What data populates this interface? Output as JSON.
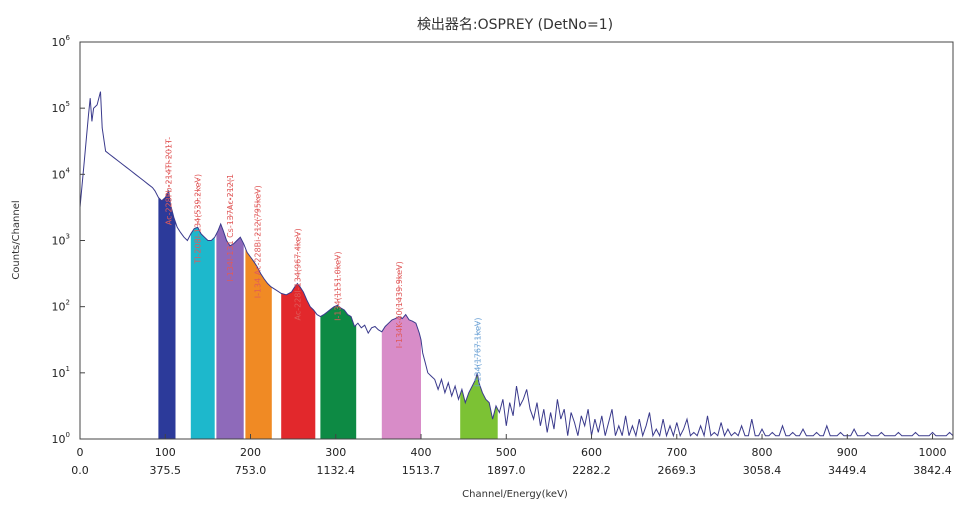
{
  "chart_data": {
    "type": "line",
    "title": "検出器名:OSPREY (DetNo=1)",
    "xlabel": "Channel/Energy(keV)",
    "ylabel": "Counts/Channel",
    "xlim": [
      0,
      1024
    ],
    "ylim_log10": [
      0,
      6
    ],
    "y_scale": "log",
    "grid": false,
    "x_channel_ticks": [
      "0",
      "100",
      "200",
      "300",
      "400",
      "500",
      "600",
      "700",
      "800",
      "900",
      "1000"
    ],
    "x_energy_ticks": [
      "0.0",
      "375.5",
      "753.0",
      "1132.4",
      "1513.7",
      "1897.0",
      "2282.2",
      "2669.3",
      "3058.4",
      "3449.4",
      "3842.4"
    ],
    "y_tick_labels": [
      {
        "base": "10",
        "exp": "0"
      },
      {
        "base": "10",
        "exp": "1"
      },
      {
        "base": "10",
        "exp": "2"
      },
      {
        "base": "10",
        "exp": "3"
      },
      {
        "base": "10",
        "exp": "4"
      },
      {
        "base": "10",
        "exp": "5"
      },
      {
        "base": "10",
        "exp": "6"
      }
    ],
    "spectrum": {
      "color": "#3a3a8c",
      "points": [
        [
          0,
          3.5
        ],
        [
          5,
          4.2
        ],
        [
          10,
          4.9
        ],
        [
          12,
          5.15
        ],
        [
          14,
          4.8
        ],
        [
          16,
          5.0
        ],
        [
          20,
          5.05
        ],
        [
          24,
          5.25
        ],
        [
          26,
          4.7
        ],
        [
          30,
          4.35
        ],
        [
          35,
          4.3
        ],
        [
          40,
          4.25
        ],
        [
          45,
          4.2
        ],
        [
          50,
          4.15
        ],
        [
          55,
          4.1
        ],
        [
          60,
          4.05
        ],
        [
          65,
          4.0
        ],
        [
          70,
          3.95
        ],
        [
          75,
          3.9
        ],
        [
          80,
          3.85
        ],
        [
          85,
          3.8
        ],
        [
          88,
          3.75
        ],
        [
          92,
          3.65
        ],
        [
          96,
          3.6
        ],
        [
          100,
          3.65
        ],
        [
          104,
          3.75
        ],
        [
          106,
          3.55
        ],
        [
          110,
          3.35
        ],
        [
          114,
          3.2
        ],
        [
          118,
          3.12
        ],
        [
          122,
          3.05
        ],
        [
          126,
          3.0
        ],
        [
          130,
          3.1
        ],
        [
          134,
          3.18
        ],
        [
          138,
          3.2
        ],
        [
          142,
          3.1
        ],
        [
          146,
          3.05
        ],
        [
          150,
          3.0
        ],
        [
          154,
          3.0
        ],
        [
          158,
          3.05
        ],
        [
          162,
          3.15
        ],
        [
          165,
          3.25
        ],
        [
          168,
          3.15
        ],
        [
          172,
          3.0
        ],
        [
          176,
          2.92
        ],
        [
          180,
          2.95
        ],
        [
          184,
          3.0
        ],
        [
          188,
          3.05
        ],
        [
          192,
          2.95
        ],
        [
          196,
          2.82
        ],
        [
          200,
          2.75
        ],
        [
          204,
          2.68
        ],
        [
          208,
          2.6
        ],
        [
          212,
          2.5
        ],
        [
          216,
          2.42
        ],
        [
          220,
          2.35
        ],
        [
          224,
          2.3
        ],
        [
          230,
          2.25
        ],
        [
          236,
          2.2
        ],
        [
          242,
          2.18
        ],
        [
          248,
          2.22
        ],
        [
          252,
          2.3
        ],
        [
          255,
          2.35
        ],
        [
          258,
          2.3
        ],
        [
          262,
          2.22
        ],
        [
          266,
          2.1
        ],
        [
          270,
          2.0
        ],
        [
          274,
          1.95
        ],
        [
          278,
          1.88
        ],
        [
          282,
          1.85
        ],
        [
          286,
          1.88
        ],
        [
          290,
          1.92
        ],
        [
          294,
          1.96
        ],
        [
          298,
          2.0
        ],
        [
          302,
          2.02
        ],
        [
          306,
          1.98
        ],
        [
          310,
          1.95
        ],
        [
          314,
          1.88
        ],
        [
          318,
          1.85
        ],
        [
          322,
          1.7
        ],
        [
          326,
          1.75
        ],
        [
          330,
          1.68
        ],
        [
          334,
          1.72
        ],
        [
          338,
          1.6
        ],
        [
          342,
          1.68
        ],
        [
          346,
          1.7
        ],
        [
          350,
          1.65
        ],
        [
          354,
          1.62
        ],
        [
          358,
          1.7
        ],
        [
          362,
          1.75
        ],
        [
          366,
          1.8
        ],
        [
          370,
          1.82
        ],
        [
          374,
          1.85
        ],
        [
          378,
          1.82
        ],
        [
          382,
          1.88
        ],
        [
          386,
          1.8
        ],
        [
          390,
          1.78
        ],
        [
          394,
          1.75
        ],
        [
          398,
          1.6
        ],
        [
          400,
          1.5
        ],
        [
          402,
          1.3
        ],
        [
          405,
          1.15
        ],
        [
          408,
          1.0
        ],
        [
          412,
          0.95
        ],
        [
          416,
          0.9
        ],
        [
          420,
          0.75
        ],
        [
          424,
          0.9
        ],
        [
          428,
          0.7
        ],
        [
          432,
          0.85
        ],
        [
          436,
          0.65
        ],
        [
          440,
          0.8
        ],
        [
          444,
          0.6
        ],
        [
          448,
          0.75
        ],
        [
          452,
          0.55
        ],
        [
          456,
          0.7
        ],
        [
          460,
          0.8
        ],
        [
          464,
          0.9
        ],
        [
          466,
          1.0
        ],
        [
          468,
          0.85
        ],
        [
          472,
          0.7
        ],
        [
          476,
          0.6
        ],
        [
          480,
          0.55
        ],
        [
          484,
          0.3
        ],
        [
          488,
          0.5
        ],
        [
          492,
          0.4
        ],
        [
          496,
          0.6
        ],
        [
          500,
          0.2
        ],
        [
          504,
          0.55
        ],
        [
          508,
          0.35
        ],
        [
          512,
          0.8
        ],
        [
          516,
          0.5
        ],
        [
          520,
          0.6
        ],
        [
          524,
          0.75
        ],
        [
          528,
          0.45
        ],
        [
          532,
          0.3
        ],
        [
          536,
          0.55
        ],
        [
          540,
          0.2
        ],
        [
          544,
          0.45
        ],
        [
          548,
          0.1
        ],
        [
          552,
          0.4
        ],
        [
          556,
          0.15
        ],
        [
          560,
          0.6
        ],
        [
          564,
          0.3
        ],
        [
          568,
          0.45
        ],
        [
          572,
          0.05
        ],
        [
          576,
          0.4
        ],
        [
          580,
          0.25
        ],
        [
          584,
          0.05
        ],
        [
          588,
          0.35
        ],
        [
          592,
          0.2
        ],
        [
          596,
          0.45
        ],
        [
          600,
          0.05
        ],
        [
          604,
          0.3
        ],
        [
          608,
          0.1
        ],
        [
          612,
          0.35
        ],
        [
          616,
          0.05
        ],
        [
          620,
          0.25
        ],
        [
          624,
          0.45
        ],
        [
          628,
          0.05
        ],
        [
          632,
          0.2
        ],
        [
          636,
          0.05
        ],
        [
          640,
          0.35
        ],
        [
          644,
          0.05
        ],
        [
          648,
          0.2
        ],
        [
          652,
          0.05
        ],
        [
          656,
          0.3
        ],
        [
          660,
          0.05
        ],
        [
          664,
          0.2
        ],
        [
          668,
          0.4
        ],
        [
          672,
          0.05
        ],
        [
          676,
          0.15
        ],
        [
          680,
          0.05
        ],
        [
          684,
          0.3
        ],
        [
          688,
          0.05
        ],
        [
          692,
          0.2
        ],
        [
          696,
          0.05
        ],
        [
          700,
          0.25
        ],
        [
          704,
          0.05
        ],
        [
          708,
          0.15
        ],
        [
          712,
          0.3
        ],
        [
          716,
          0.05
        ],
        [
          720,
          0.1
        ],
        [
          724,
          0.05
        ],
        [
          728,
          0.2
        ],
        [
          732,
          0.05
        ],
        [
          736,
          0.35
        ],
        [
          740,
          0.05
        ],
        [
          744,
          0.1
        ],
        [
          748,
          0.05
        ],
        [
          752,
          0.25
        ],
        [
          756,
          0.05
        ],
        [
          760,
          0.15
        ],
        [
          764,
          0.05
        ],
        [
          768,
          0.1
        ],
        [
          772,
          0.05
        ],
        [
          776,
          0.2
        ],
        [
          780,
          0.05
        ],
        [
          784,
          0.05
        ],
        [
          788,
          0.3
        ],
        [
          792,
          0.05
        ],
        [
          796,
          0.05
        ],
        [
          800,
          0.15
        ],
        [
          804,
          0.05
        ],
        [
          808,
          0.05
        ],
        [
          812,
          0.1
        ],
        [
          816,
          0.05
        ],
        [
          820,
          0.05
        ],
        [
          824,
          0.2
        ],
        [
          828,
          0.05
        ],
        [
          832,
          0.05
        ],
        [
          836,
          0.1
        ],
        [
          840,
          0.05
        ],
        [
          844,
          0.05
        ],
        [
          848,
          0.15
        ],
        [
          852,
          0.05
        ],
        [
          856,
          0.05
        ],
        [
          860,
          0.05
        ],
        [
          864,
          0.1
        ],
        [
          868,
          0.05
        ],
        [
          872,
          0.05
        ],
        [
          876,
          0.2
        ],
        [
          880,
          0.05
        ],
        [
          884,
          0.05
        ],
        [
          888,
          0.05
        ],
        [
          892,
          0.1
        ],
        [
          896,
          0.05
        ],
        [
          900,
          0.05
        ],
        [
          904,
          0.05
        ],
        [
          908,
          0.15
        ],
        [
          912,
          0.05
        ],
        [
          916,
          0.05
        ],
        [
          920,
          0.05
        ],
        [
          924,
          0.1
        ],
        [
          928,
          0.05
        ],
        [
          932,
          0.05
        ],
        [
          936,
          0.05
        ],
        [
          940,
          0.1
        ],
        [
          944,
          0.05
        ],
        [
          948,
          0.05
        ],
        [
          952,
          0.05
        ],
        [
          956,
          0.05
        ],
        [
          960,
          0.1
        ],
        [
          964,
          0.05
        ],
        [
          968,
          0.05
        ],
        [
          972,
          0.05
        ],
        [
          976,
          0.05
        ],
        [
          980,
          0.1
        ],
        [
          984,
          0.05
        ],
        [
          988,
          0.05
        ],
        [
          992,
          0.05
        ],
        [
          996,
          0.05
        ],
        [
          1000,
          0.1
        ],
        [
          1004,
          0.05
        ],
        [
          1008,
          0.05
        ],
        [
          1012,
          0.05
        ],
        [
          1016,
          0.05
        ],
        [
          1020,
          0.1
        ],
        [
          1024,
          0.05
        ]
      ]
    },
    "regions": [
      {
        "x0": 92,
        "x1": 112,
        "color": "#2c3a9a"
      },
      {
        "x0": 130,
        "x1": 158,
        "color": "#1db8cc"
      },
      {
        "x0": 160,
        "x1": 192,
        "color": "#8e6aba"
      },
      {
        "x0": 194,
        "x1": 225,
        "color": "#f08a24"
      },
      {
        "x0": 236,
        "x1": 276,
        "color": "#e2282c"
      },
      {
        "x0": 282,
        "x1": 324,
        "color": "#0d8a44"
      },
      {
        "x0": 354,
        "x1": 400,
        "color": "#d88cc8"
      },
      {
        "x0": 446,
        "x1": 490,
        "color": "#7cc234"
      }
    ],
    "peaks": [
      {
        "x": 104,
        "y": 3.78,
        "text": "Ac-228Pb-214Tl-201T-",
        "color": "#e05a5a"
      },
      {
        "x": 138,
        "y": 3.22,
        "text": "Tl-208I-134(539.2keV)",
        "color": "#e05a5a"
      },
      {
        "x": 176,
        "y": 3.22,
        "text": "I-134I-131 Cs-137Ac-212(1",
        "color": "#e05a5a"
      },
      {
        "x": 208,
        "y": 3.05,
        "text": "I-134 Ac-228Bi-212(795keV)",
        "color": "#e05a5a"
      },
      {
        "x": 255,
        "y": 2.4,
        "text": "Ac-228I-134(967.4keV)",
        "color": "#e05a5a"
      },
      {
        "x": 302,
        "y": 2.05,
        "text": "I-134(1151.0keV)",
        "color": "#e05a5a"
      },
      {
        "x": 374,
        "y": 1.9,
        "text": "I-134K-40(1439.9keV)",
        "color": "#e05a5a"
      },
      {
        "x": 466,
        "y": 1.05,
        "text": "I-134(1767.1keV)",
        "color": "#6aa0d4"
      }
    ]
  }
}
